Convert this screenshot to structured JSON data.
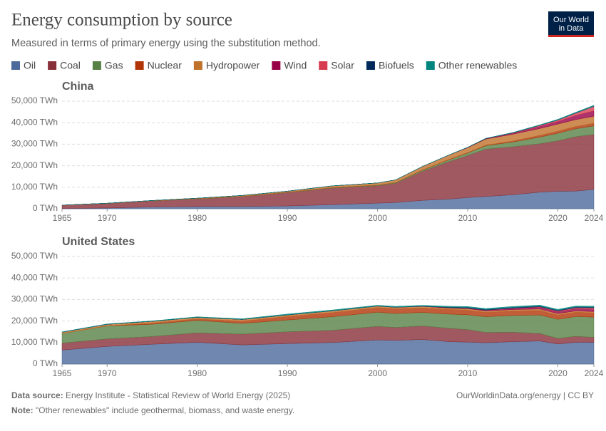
{
  "header": {
    "title": "Energy consumption by source",
    "subtitle": "Measured in terms of primary energy using the substitution method.",
    "logo_line1": "Our World",
    "logo_line2": "in Data"
  },
  "footer": {
    "source_label": "Data source:",
    "source_text": "Energy Institute - Statistical Review of World Energy (2025)",
    "url": "OurWorldinData.org/energy | CC BY",
    "note_label": "Note:",
    "note_text": "\"Other renewables\" include geothermal, biomass, and waste energy."
  },
  "chart_data": [
    {
      "type": "stacked-area",
      "title": "China",
      "x": [
        1965,
        1970,
        1975,
        1980,
        1985,
        1990,
        1995,
        2000,
        2002,
        2005,
        2008,
        2010,
        2012,
        2015,
        2018,
        2020,
        2022,
        2024
      ],
      "xlim": [
        1965,
        2024
      ],
      "xticks": [
        1965,
        1970,
        1980,
        1990,
        2000,
        2010,
        2020,
        2024
      ],
      "ylim": [
        0,
        50000
      ],
      "yticks": [
        {
          "value": 0,
          "label": "0 TWh"
        },
        {
          "value": 10000,
          "label": "10,000 TWh"
        },
        {
          "value": 20000,
          "label": "20,000 TWh"
        },
        {
          "value": 30000,
          "label": "30,000 TWh"
        },
        {
          "value": 40000,
          "label": "40,000 TWh"
        },
        {
          "value": 50000,
          "label": "50,000 TWh"
        }
      ],
      "grid": true,
      "series": [
        {
          "name": "Oil",
          "color": "#4c6a9c",
          "values": [
            130,
            350,
            800,
            1000,
            1050,
            1300,
            1900,
            2600,
            2900,
            3900,
            4500,
            5200,
            5700,
            6500,
            7700,
            8100,
            8200,
            9000
          ]
        },
        {
          "name": "Coal",
          "color": "#883039",
          "values": [
            1500,
            2100,
            2800,
            3500,
            4600,
            6200,
            7700,
            8100,
            8900,
            13500,
            17500,
            19500,
            22000,
            22300,
            22500,
            23500,
            25300,
            25500
          ]
        },
        {
          "name": "Gas",
          "color": "#578145",
          "values": [
            10,
            30,
            80,
            150,
            140,
            170,
            200,
            280,
            330,
            520,
            900,
            1200,
            1600,
            2200,
            3100,
            3500,
            3700,
            4000
          ]
        },
        {
          "name": "Nuclear",
          "color": "#b13507",
          "values": [
            0,
            0,
            0,
            0,
            0,
            0,
            35,
            45,
            65,
            130,
            170,
            190,
            250,
            450,
            800,
            950,
            1050,
            1200
          ]
        },
        {
          "name": "Hydropower",
          "color": "#c0712a",
          "values": [
            40,
            90,
            150,
            250,
            400,
            500,
            800,
            950,
            1200,
            1600,
            2000,
            2300,
            2800,
            3200,
            3200,
            3300,
            3200,
            3300
          ]
        },
        {
          "name": "Wind",
          "color": "#970046",
          "values": [
            0,
            0,
            0,
            0,
            0,
            0,
            0,
            5,
            10,
            15,
            35,
            120,
            250,
            500,
            950,
            1200,
            1900,
            2500
          ]
        },
        {
          "name": "Solar",
          "color": "#d73c50",
          "values": [
            0,
            0,
            0,
            0,
            0,
            0,
            0,
            0,
            0,
            0,
            2,
            5,
            10,
            100,
            450,
            650,
            1100,
            2100
          ]
        },
        {
          "name": "Biofuels",
          "color": "#00295b",
          "values": [
            0,
            0,
            0,
            0,
            0,
            0,
            0,
            0,
            0,
            10,
            20,
            30,
            35,
            40,
            45,
            50,
            55,
            60
          ]
        },
        {
          "name": "Other renewables",
          "color": "#00847e",
          "values": [
            0,
            0,
            0,
            0,
            0,
            0,
            0,
            10,
            15,
            30,
            45,
            60,
            90,
            150,
            250,
            300,
            350,
            450
          ]
        }
      ]
    },
    {
      "type": "stacked-area",
      "title": "United States",
      "x": [
        1965,
        1970,
        1975,
        1980,
        1985,
        1990,
        1995,
        2000,
        2002,
        2005,
        2008,
        2010,
        2012,
        2015,
        2018,
        2020,
        2022,
        2024
      ],
      "xlim": [
        1965,
        2024
      ],
      "xticks": [
        1965,
        1970,
        1980,
        1990,
        2000,
        2010,
        2020,
        2024
      ],
      "ylim": [
        0,
        50000
      ],
      "yticks": [
        {
          "value": 0,
          "label": "0 TWh"
        },
        {
          "value": 10000,
          "label": "10,000 TWh"
        },
        {
          "value": 20000,
          "label": "20,000 TWh"
        },
        {
          "value": 30000,
          "label": "30,000 TWh"
        },
        {
          "value": 40000,
          "label": "40,000 TWh"
        },
        {
          "value": 50000,
          "label": "50,000 TWh"
        }
      ],
      "grid": true,
      "series": [
        {
          "name": "Oil",
          "color": "#4c6a9c",
          "values": [
            6500,
            8200,
            9200,
            10100,
            8900,
            9500,
            10000,
            11200,
            11000,
            11400,
            10400,
            10200,
            9900,
            10400,
            10700,
            9300,
            10100,
            10100
          ]
        },
        {
          "name": "Coal",
          "color": "#883039",
          "values": [
            3200,
            3500,
            3600,
            4400,
            5000,
            5500,
            5700,
            6300,
            6000,
            6300,
            6200,
            5800,
            4800,
            4400,
            3500,
            2600,
            2800,
            2300
          ]
        },
        {
          "name": "Gas",
          "color": "#578145",
          "values": [
            4500,
            6000,
            5700,
            5800,
            5000,
            5500,
            6300,
            6600,
            6500,
            6300,
            6600,
            6900,
            7300,
            7800,
            8600,
            8900,
            9200,
            9400
          ]
        },
        {
          "name": "Nuclear",
          "color": "#b13507",
          "values": [
            10,
            60,
            550,
            650,
            1000,
            1600,
            1900,
            2100,
            2200,
            2100,
            2200,
            2200,
            2000,
            2100,
            2100,
            2000,
            2000,
            2000
          ]
        },
        {
          "name": "Hydropower",
          "color": "#c0712a",
          "values": [
            600,
            700,
            800,
            750,
            800,
            700,
            800,
            700,
            650,
            650,
            620,
            650,
            680,
            620,
            680,
            650,
            600,
            580
          ]
        },
        {
          "name": "Wind",
          "color": "#970046",
          "values": [
            0,
            0,
            0,
            0,
            5,
            10,
            10,
            15,
            30,
            50,
            160,
            260,
            380,
            550,
            750,
            870,
            1000,
            1050
          ]
        },
        {
          "name": "Solar",
          "color": "#d73c50",
          "values": [
            0,
            0,
            0,
            0,
            0,
            1,
            1,
            1,
            1,
            2,
            3,
            5,
            20,
            100,
            250,
            350,
            480,
            650
          ]
        },
        {
          "name": "Biofuels",
          "color": "#00295b",
          "values": [
            0,
            0,
            0,
            5,
            15,
            20,
            30,
            30,
            50,
            100,
            250,
            300,
            300,
            350,
            370,
            330,
            380,
            400
          ]
        },
        {
          "name": "Other renewables",
          "color": "#00847e",
          "values": [
            150,
            180,
            200,
            250,
            300,
            400,
            400,
            380,
            370,
            380,
            400,
            420,
            420,
            430,
            430,
            420,
            420,
            410
          ]
        }
      ]
    }
  ]
}
